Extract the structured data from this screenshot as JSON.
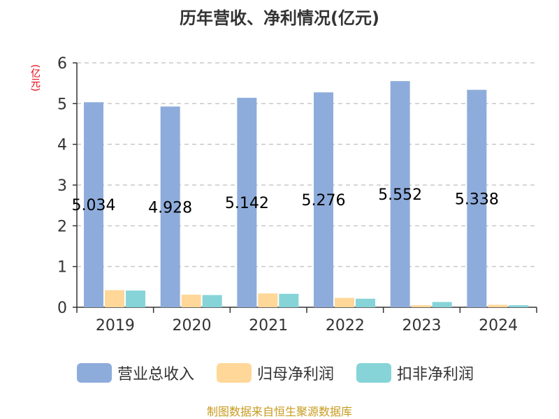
{
  "chart_data": {
    "type": "bar",
    "title": "历年营收、净利情况(亿元)",
    "y_unit": "(亿元)",
    "categories": [
      "2019",
      "2020",
      "2021",
      "2022",
      "2023",
      "2024"
    ],
    "ylim": [
      0,
      6
    ],
    "yticks": [
      "0",
      "1",
      "2",
      "3",
      "4",
      "5",
      "6"
    ],
    "grid": true,
    "legend_position": "bottom",
    "series": [
      {
        "name": "营业总收入",
        "color": "#8eacdb",
        "values": [
          5.034,
          4.928,
          5.142,
          5.276,
          5.552,
          5.338
        ],
        "labels": [
          "5.034",
          "4.928",
          "5.142",
          "5.276",
          "5.552",
          "5.338"
        ]
      },
      {
        "name": "归母净利润",
        "color": "#ffd799",
        "values": [
          0.42,
          0.31,
          0.34,
          0.23,
          0.05,
          0.06
        ]
      },
      {
        "name": "扣非净利润",
        "color": "#86d4d8",
        "values": [
          0.41,
          0.3,
          0.33,
          0.21,
          0.13,
          0.05
        ]
      }
    ]
  },
  "source": "制图数据来自恒生聚源数据库"
}
